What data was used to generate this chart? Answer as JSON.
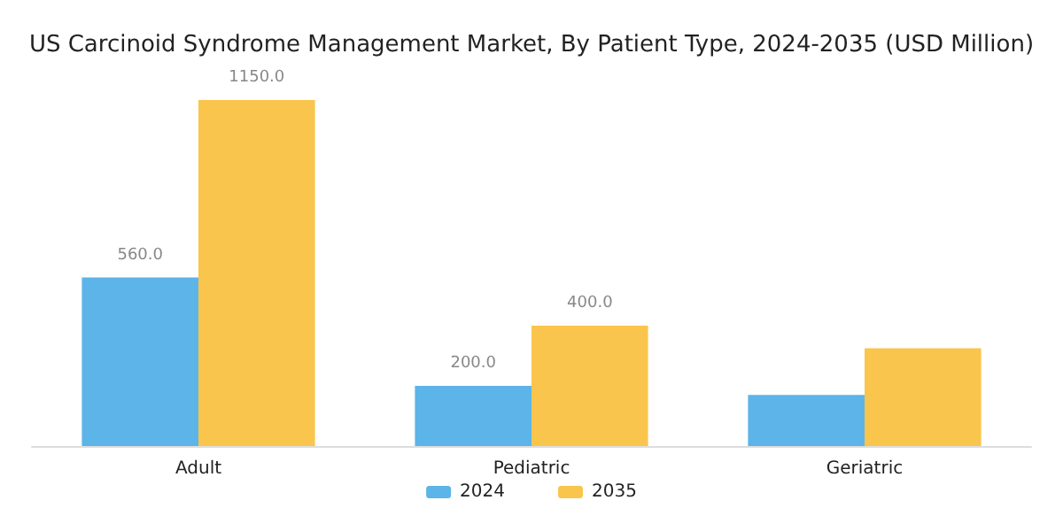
{
  "chart_data": {
    "type": "bar",
    "title": "US Carcinoid Syndrome Management Market, By Patient Type, 2024-2035 (USD Million)",
    "categories": [
      "Adult",
      "Pediatric",
      "Geriatric"
    ],
    "series": [
      {
        "name": "2024",
        "color": "#5cb4e8",
        "values": [
          560,
          200,
          170
        ],
        "value_labels": [
          "560.0",
          "200.0",
          null
        ]
      },
      {
        "name": "2035",
        "color": "#fac54c",
        "values": [
          1150,
          400,
          325
        ],
        "value_labels": [
          "1150.0",
          "400.0",
          null
        ]
      }
    ],
    "legend": "bottom",
    "grid": false
  }
}
